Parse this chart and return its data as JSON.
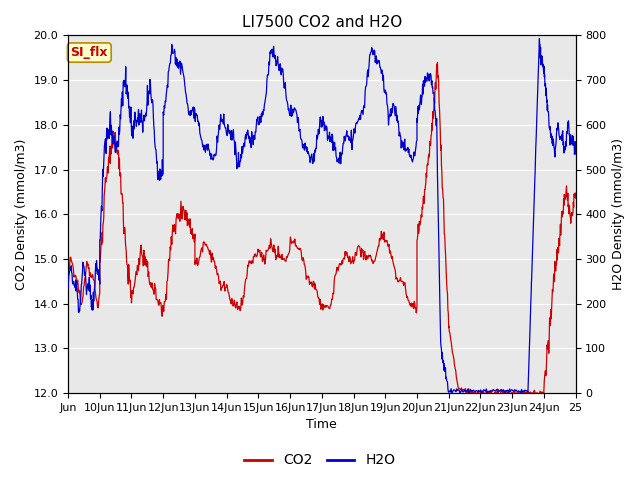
{
  "title": "LI7500 CO2 and H2O",
  "xlabel": "Time",
  "ylabel_left": "CO2 Density (mmol/m3)",
  "ylabel_right": "H2O Density (mmol/m3)",
  "xlim": [
    0,
    16
  ],
  "ylim_left": [
    12.0,
    20.0
  ],
  "ylim_right": [
    0,
    800
  ],
  "yticks_left": [
    12.0,
    13.0,
    14.0,
    15.0,
    16.0,
    17.0,
    18.0,
    19.0,
    20.0
  ],
  "yticks_right": [
    0,
    100,
    200,
    300,
    400,
    500,
    600,
    700,
    800
  ],
  "xtick_labels": [
    "Jun",
    "10Jun",
    "11Jun",
    "12Jun",
    "13Jun",
    "14Jun",
    "15Jun",
    "16Jun",
    "17Jun",
    "18Jun",
    "19Jun",
    "20Jun",
    "21Jun",
    "22Jun",
    "23Jun",
    "24Jun",
    "25"
  ],
  "co2_color": "#cc0000",
  "h2o_color": "#0000cc",
  "background_color": "#e8e8e8",
  "figure_background": "#ffffff",
  "annotation_text": "SI_flx",
  "annotation_facecolor": "#ffffcc",
  "annotation_edgecolor": "#bb8800",
  "annotation_textcolor": "#cc0000",
  "legend_labels": [
    "CO2",
    "H2O"
  ],
  "title_fontsize": 11,
  "label_fontsize": 9,
  "tick_fontsize": 8
}
